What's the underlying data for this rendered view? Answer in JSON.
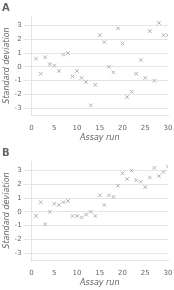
{
  "chart_data": [
    {
      "type": "scatter",
      "title": "A",
      "x": [
        1,
        2,
        3,
        4,
        5,
        6,
        7,
        8,
        9,
        10,
        11,
        12,
        13,
        14,
        15,
        16,
        17,
        18,
        19,
        20,
        21,
        22,
        23,
        24,
        25,
        26,
        27,
        28,
        29,
        30
      ],
      "values": [
        0.6,
        -0.5,
        0.7,
        0.2,
        0.1,
        -0.3,
        0.9,
        1.0,
        -0.7,
        -0.3,
        -0.8,
        -1.1,
        -2.8,
        -1.3,
        2.3,
        1.8,
        0.0,
        -0.4,
        2.8,
        1.7,
        -2.2,
        -1.8,
        -0.5,
        0.5,
        -0.8,
        2.6,
        -1.0,
        3.2,
        2.3,
        2.3
      ],
      "color": "#b0b0b0",
      "marker": "x",
      "xlabel": "Assay run",
      "ylabel": "Standard deviation",
      "xlim": [
        0,
        30
      ],
      "ylim": [
        -3.5,
        3.7
      ],
      "xticks": [
        0,
        5,
        10,
        15,
        20,
        25,
        30
      ],
      "yticks": [
        -3,
        -2,
        -1,
        0,
        1,
        2,
        3
      ],
      "grid": "y"
    },
    {
      "type": "scatter",
      "title": "B",
      "x": [
        1,
        2,
        3,
        4,
        5,
        6,
        7,
        8,
        9,
        10,
        11,
        12,
        13,
        14,
        15,
        16,
        17,
        18,
        19,
        20,
        21,
        22,
        23,
        24,
        25,
        26,
        27,
        28,
        29,
        30
      ],
      "values": [
        -0.3,
        0.7,
        -0.9,
        0.0,
        0.6,
        0.5,
        0.7,
        0.8,
        -0.3,
        -0.3,
        -0.4,
        -0.2,
        0.0,
        -0.3,
        1.2,
        0.5,
        1.2,
        1.1,
        1.9,
        2.8,
        2.4,
        3.0,
        2.3,
        2.2,
        1.8,
        2.5,
        3.2,
        2.6,
        2.9,
        3.3
      ],
      "color": "#b0b0b0",
      "marker": "x",
      "xlabel": "Assay run",
      "ylabel": "Standard deviation",
      "xlim": [
        0,
        30
      ],
      "ylim": [
        -3.5,
        3.7
      ],
      "xticks": [
        0,
        5,
        10,
        15,
        20,
        25,
        30
      ],
      "yticks": [
        -3,
        -2,
        -1,
        0,
        1,
        2,
        3
      ],
      "grid": "y"
    }
  ]
}
